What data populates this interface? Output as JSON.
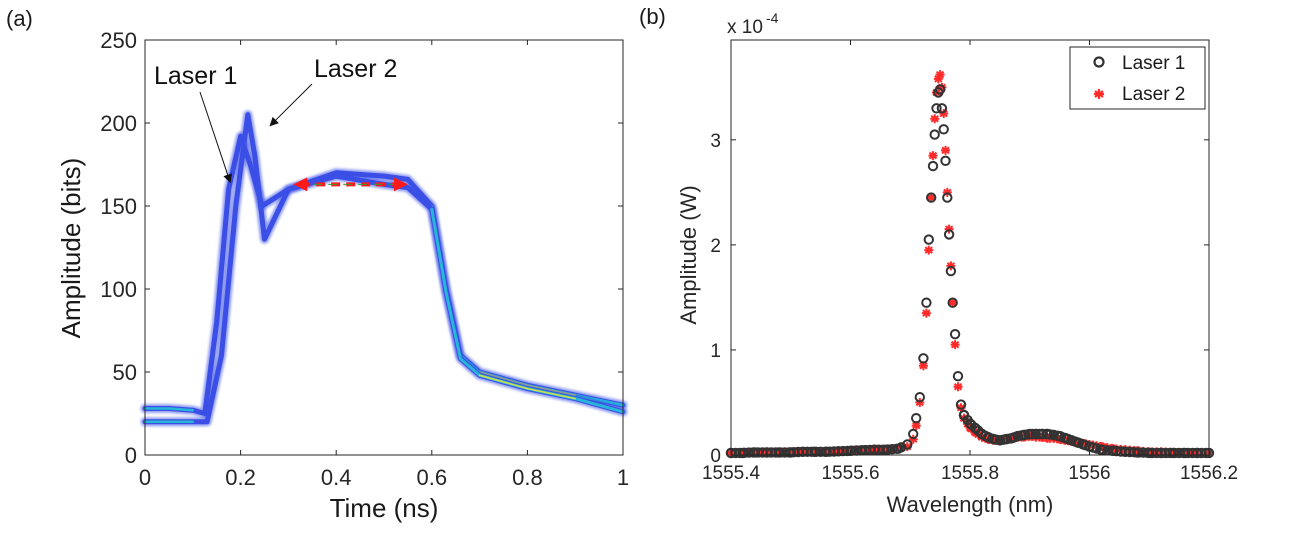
{
  "colors": {
    "laser1_marker": "#333333",
    "laser2_marker": "#ff2a2a",
    "trace_blue": "#3b4fe6",
    "trace_cyan": "#27b6d8",
    "trace_yellow": "#e6e23a",
    "arrow_red": "#ff1a1a",
    "arrow_green": "#2e9e2e"
  },
  "chart_data": [
    {
      "type": "scatter",
      "panel_label": "(a)",
      "title": "",
      "xlabel": "Time (ns)",
      "ylabel": "Amplitude (bits)",
      "xlim": [
        0,
        1
      ],
      "ylim": [
        0,
        250
      ],
      "xticks": [
        "0",
        "0.2",
        "0.4",
        "0.6",
        "0.8",
        "1"
      ],
      "yticks": [
        "0",
        "50",
        "100",
        "150",
        "200",
        "250"
      ],
      "annotations": [
        {
          "text": "Laser 1",
          "points_to": [
            0.17,
            163
          ]
        },
        {
          "text": "Laser 2",
          "points_to": [
            0.245,
            202
          ]
        }
      ],
      "double_arrow": {
        "x_from": 0.31,
        "x_to": 0.55,
        "y": 163
      },
      "series": [
        {
          "name": "Laser 1",
          "x": [
            0,
            0.05,
            0.1,
            0.125,
            0.15,
            0.175,
            0.2,
            0.22,
            0.245,
            0.3,
            0.4,
            0.5,
            0.55,
            0.6,
            0.63,
            0.66,
            0.7,
            0.8,
            0.9,
            1
          ],
          "values": [
            28,
            28,
            27,
            25,
            80,
            160,
            192,
            175,
            150,
            160,
            170,
            168,
            166,
            150,
            100,
            60,
            50,
            42,
            36,
            30
          ]
        },
        {
          "name": "Laser 2",
          "x": [
            0,
            0.05,
            0.1,
            0.13,
            0.16,
            0.19,
            0.215,
            0.23,
            0.25,
            0.3,
            0.4,
            0.5,
            0.55,
            0.6,
            0.63,
            0.66,
            0.7,
            0.8,
            0.9,
            1
          ],
          "values": [
            20,
            20,
            20,
            20,
            60,
            150,
            205,
            180,
            130,
            160,
            168,
            163,
            161,
            148,
            98,
            58,
            48,
            40,
            34,
            26
          ]
        }
      ]
    },
    {
      "type": "scatter",
      "panel_label": "(b)",
      "title": "",
      "xlabel": "Wavelength (nm)",
      "ylabel": "Amplitude (W)",
      "scale_label_base": "x 10",
      "scale_label_exp": "-4",
      "xlim": [
        1555.4,
        1556.2
      ],
      "ylim": [
        0,
        3.95
      ],
      "xticks": [
        "1555.4",
        "1555.6",
        "1555.8",
        "1556",
        "1556.2"
      ],
      "yticks": [
        "0",
        "1",
        "2",
        "3"
      ],
      "legend": [
        "Laser 1",
        "Laser 2"
      ],
      "legend_position": "top-right",
      "series": [
        {
          "name": "Laser 1",
          "marker": "circle",
          "peak": 3.48,
          "x": [
            1555.4,
            1555.42,
            1555.44,
            1555.46,
            1555.48,
            1555.5,
            1555.52,
            1555.54,
            1555.56,
            1555.58,
            1555.6,
            1555.62,
            1555.64,
            1555.66,
            1555.68,
            1555.695,
            1555.705,
            1555.71,
            1555.716,
            1555.722,
            1555.727,
            1555.731,
            1555.735,
            1555.738,
            1555.741,
            1555.744,
            1555.747,
            1555.75,
            1555.753,
            1555.756,
            1555.759,
            1555.762,
            1555.765,
            1555.768,
            1555.771,
            1555.775,
            1555.78,
            1555.785,
            1555.79,
            1555.8,
            1555.81,
            1555.82,
            1555.83,
            1555.84,
            1555.85,
            1555.86,
            1555.87,
            1555.88,
            1555.89,
            1555.9,
            1555.91,
            1555.92,
            1555.93,
            1555.94,
            1555.95,
            1555.96,
            1555.97,
            1555.98,
            1555.99,
            1556,
            1556.02,
            1556.04,
            1556.06,
            1556.08,
            1556.1,
            1556.12,
            1556.14,
            1556.16,
            1556.18,
            1556.2
          ],
          "values": [
            0.02,
            0.02,
            0.025,
            0.025,
            0.025,
            0.025,
            0.03,
            0.03,
            0.03,
            0.035,
            0.04,
            0.045,
            0.05,
            0.05,
            0.06,
            0.1,
            0.2,
            0.35,
            0.55,
            0.92,
            1.45,
            2.05,
            2.45,
            2.75,
            3.05,
            3.3,
            3.45,
            3.48,
            3.3,
            3.1,
            2.8,
            2.45,
            2.1,
            1.75,
            1.45,
            1.15,
            0.75,
            0.48,
            0.38,
            0.3,
            0.25,
            0.2,
            0.17,
            0.15,
            0.14,
            0.15,
            0.16,
            0.18,
            0.19,
            0.2,
            0.2,
            0.2,
            0.2,
            0.19,
            0.18,
            0.16,
            0.14,
            0.12,
            0.1,
            0.08,
            0.05,
            0.04,
            0.03,
            0.025,
            0.02,
            0.02,
            0.02,
            0.02,
            0.02,
            0.02
          ]
        },
        {
          "name": "Laser 2",
          "marker": "star",
          "peak": 3.62,
          "x": [
            1555.4,
            1555.42,
            1555.44,
            1555.46,
            1555.48,
            1555.5,
            1555.52,
            1555.54,
            1555.56,
            1555.58,
            1555.6,
            1555.62,
            1555.64,
            1555.66,
            1555.68,
            1555.695,
            1555.705,
            1555.71,
            1555.716,
            1555.722,
            1555.727,
            1555.731,
            1555.735,
            1555.738,
            1555.741,
            1555.744,
            1555.747,
            1555.75,
            1555.753,
            1555.756,
            1555.759,
            1555.762,
            1555.765,
            1555.768,
            1555.771,
            1555.775,
            1555.78,
            1555.785,
            1555.79,
            1555.8,
            1555.81,
            1555.82,
            1555.83,
            1555.84,
            1555.85,
            1555.86,
            1555.87,
            1555.88,
            1555.89,
            1555.9,
            1555.91,
            1555.92,
            1555.93,
            1555.94,
            1555.95,
            1555.96,
            1555.97,
            1555.98,
            1555.99,
            1556,
            1556.02,
            1556.04,
            1556.06,
            1556.08,
            1556.1,
            1556.12,
            1556.14,
            1556.16,
            1556.18,
            1556.2
          ],
          "values": [
            0.02,
            0.02,
            0.025,
            0.025,
            0.025,
            0.03,
            0.03,
            0.03,
            0.035,
            0.035,
            0.04,
            0.045,
            0.05,
            0.05,
            0.06,
            0.08,
            0.15,
            0.28,
            0.5,
            0.85,
            1.35,
            1.95,
            2.45,
            2.85,
            3.2,
            3.45,
            3.58,
            3.62,
            3.5,
            3.25,
            2.9,
            2.5,
            2.15,
            1.8,
            1.45,
            1.05,
            0.65,
            0.45,
            0.35,
            0.26,
            0.21,
            0.17,
            0.15,
            0.14,
            0.14,
            0.15,
            0.16,
            0.17,
            0.17,
            0.18,
            0.17,
            0.17,
            0.16,
            0.16,
            0.15,
            0.14,
            0.13,
            0.12,
            0.11,
            0.1,
            0.08,
            0.06,
            0.05,
            0.04,
            0.03,
            0.03,
            0.025,
            0.02,
            0.02,
            0.02
          ]
        }
      ]
    }
  ]
}
